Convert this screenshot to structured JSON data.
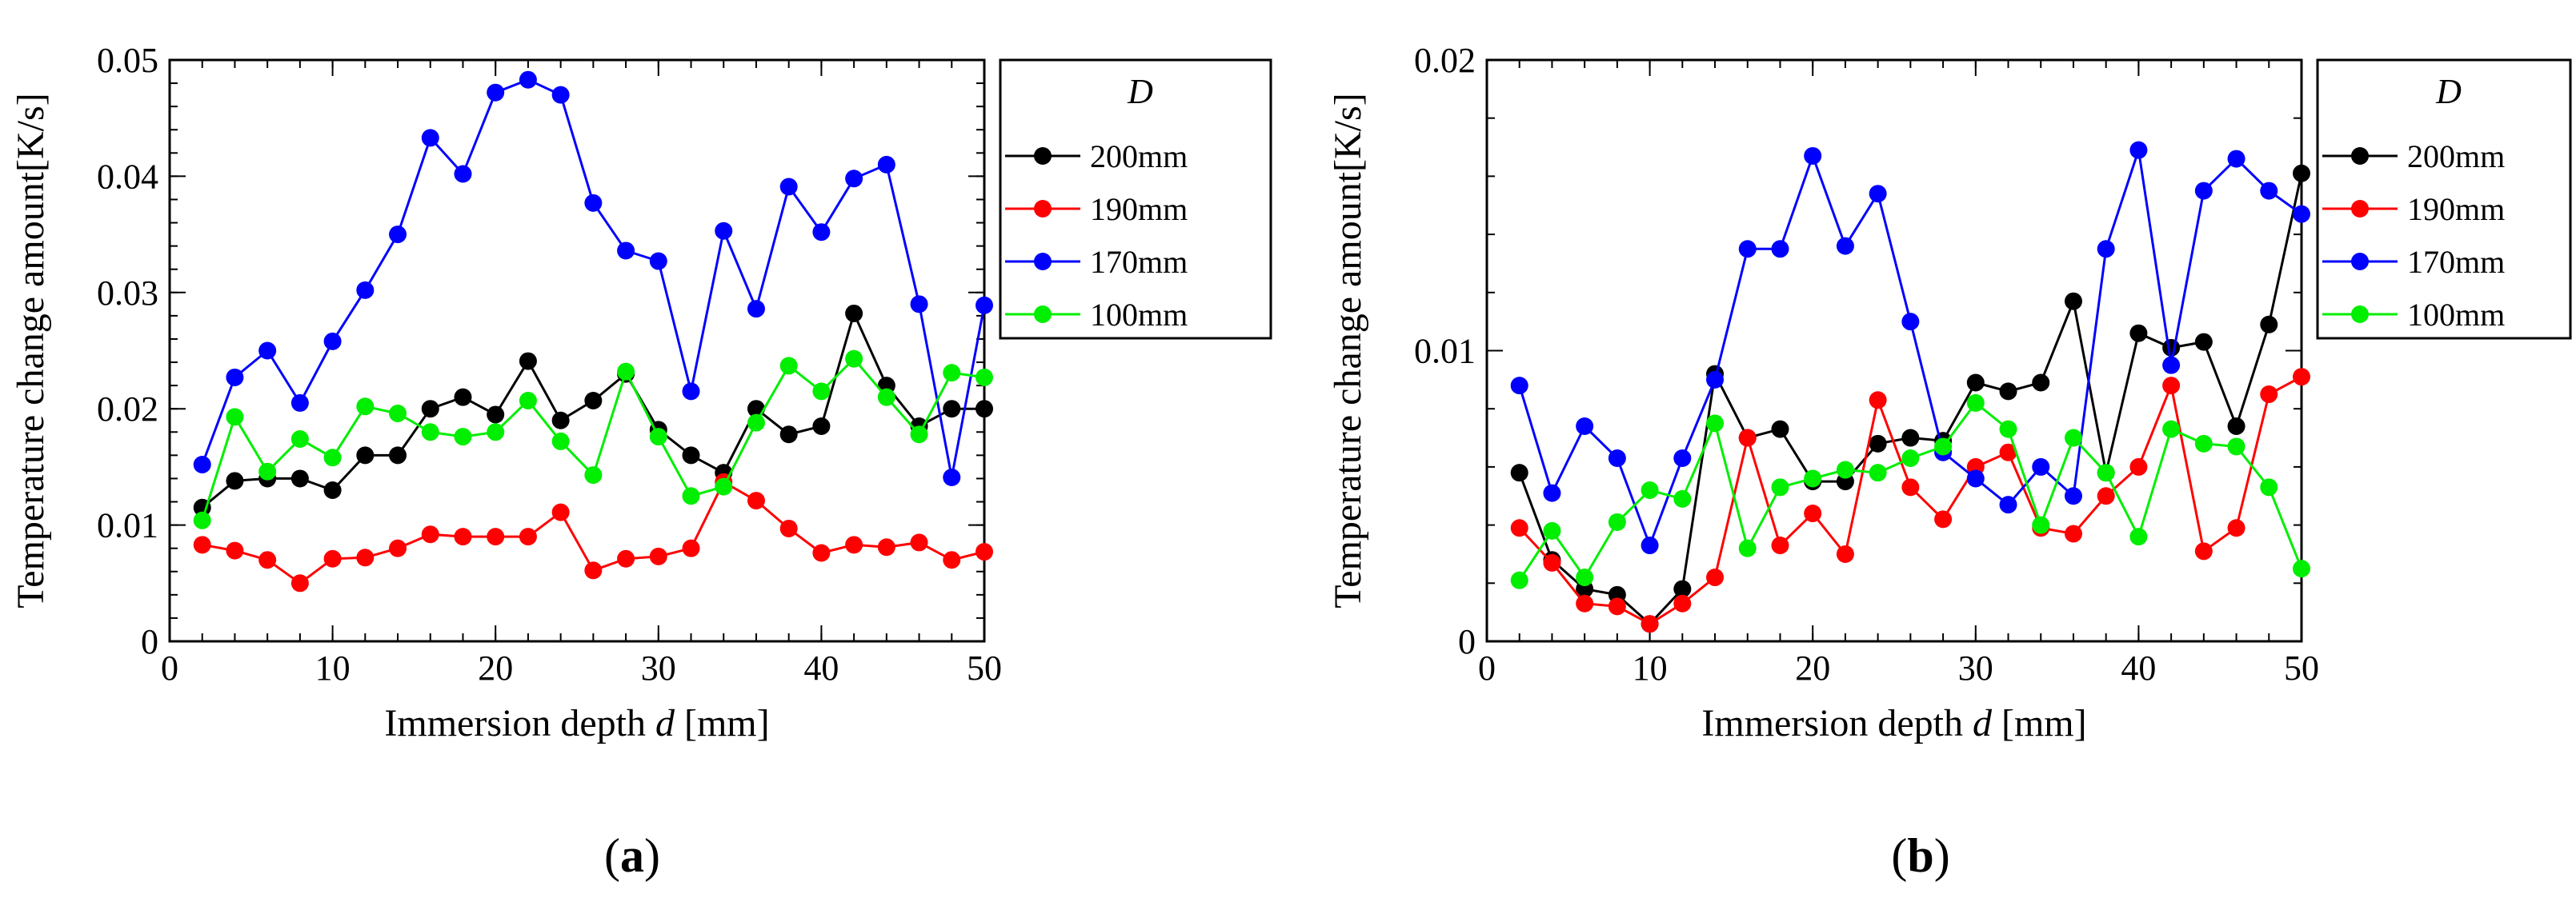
{
  "chart_data": [
    {
      "panel_label": "a",
      "type": "line",
      "xlabel": "Immersion depth",
      "xlabel_var": "d",
      "xlabel_unit": "[mm]",
      "ylabel": "Temperature change amount[K/s]",
      "xlim": [
        0,
        50
      ],
      "ylim": [
        0,
        0.05
      ],
      "xticks": [
        0,
        10,
        20,
        30,
        40,
        50
      ],
      "yticks": [
        0,
        0.01,
        0.02,
        0.03,
        0.04,
        0.05
      ],
      "ytick_labels": [
        "0",
        "0.01",
        "0.02",
        "0.03",
        "0.04",
        "0.05"
      ],
      "legend_title": "D",
      "legend_position": "right-outside",
      "x": [
        2,
        4,
        6,
        8,
        10,
        12,
        14,
        16,
        18,
        20,
        22,
        24,
        26,
        28,
        30,
        32,
        34,
        36,
        38,
        40,
        42,
        44,
        46,
        48,
        50
      ],
      "series": [
        {
          "name": "200mm",
          "color": "#000000",
          "values": [
            0.0115,
            0.0138,
            0.014,
            0.014,
            0.013,
            0.016,
            0.016,
            0.02,
            0.021,
            0.0195,
            0.0241,
            0.019,
            0.0207,
            0.023,
            0.0182,
            0.016,
            0.0145,
            0.02,
            0.0178,
            0.0185,
            0.0282,
            0.022,
            0.0185,
            0.02,
            0.02
          ]
        },
        {
          "name": "190mm",
          "color": "#ff0000",
          "values": [
            0.0083,
            0.0078,
            0.007,
            0.005,
            0.0071,
            0.0072,
            0.008,
            0.0092,
            0.009,
            0.009,
            0.009,
            0.0111,
            0.0061,
            0.0071,
            0.0073,
            0.008,
            0.0137,
            0.0121,
            0.0097,
            0.0076,
            0.0083,
            0.0081,
            0.0085,
            0.007,
            0.0077
          ]
        },
        {
          "name": "170mm",
          "color": "#0000ff",
          "values": [
            0.0152,
            0.0227,
            0.025,
            0.0205,
            0.0258,
            0.0302,
            0.035,
            0.0433,
            0.0402,
            0.0472,
            0.0483,
            0.047,
            0.0377,
            0.0336,
            0.0327,
            0.0215,
            0.0353,
            0.0286,
            0.0391,
            0.0352,
            0.0398,
            0.041,
            0.029,
            0.0141,
            0.0289
          ]
        },
        {
          "name": "100mm",
          "color": "#00ee00",
          "values": [
            0.0104,
            0.0193,
            0.0146,
            0.0174,
            0.0158,
            0.0202,
            0.0196,
            0.018,
            0.0176,
            0.018,
            0.0207,
            0.0172,
            0.0143,
            0.0232,
            0.0176,
            0.0125,
            0.0133,
            0.0188,
            0.0237,
            0.0215,
            0.0243,
            0.021,
            0.0178,
            0.0231,
            0.0227
          ]
        }
      ]
    },
    {
      "panel_label": "b",
      "type": "line",
      "xlabel": "Immersion depth",
      "xlabel_var": "d",
      "xlabel_unit": "[mm]",
      "ylabel": "Temperature change amount[K/s]",
      "xlim": [
        0,
        50
      ],
      "ylim": [
        0,
        0.02
      ],
      "xticks": [
        0,
        10,
        20,
        30,
        40,
        50
      ],
      "yticks": [
        0,
        0.01,
        0.02
      ],
      "ytick_labels": [
        "0",
        "0.01",
        "0.02"
      ],
      "legend_title": "D",
      "legend_position": "right-outside",
      "x": [
        2,
        4,
        6,
        8,
        10,
        12,
        14,
        16,
        18,
        20,
        22,
        24,
        26,
        28,
        30,
        32,
        34,
        36,
        38,
        40,
        42,
        44,
        46,
        48,
        50
      ],
      "series": [
        {
          "name": "200mm",
          "color": "#000000",
          "values": [
            0.0058,
            0.0028,
            0.0018,
            0.0016,
            0.0006,
            0.0018,
            0.0092,
            0.007,
            0.0073,
            0.0055,
            0.0055,
            0.0068,
            0.007,
            0.0069,
            0.0089,
            0.0086,
            0.0089,
            0.0117,
            0.0058,
            0.0106,
            0.0101,
            0.0103,
            0.0074,
            0.0109,
            0.0161
          ]
        },
        {
          "name": "190mm",
          "color": "#ff0000",
          "values": [
            0.0039,
            0.0027,
            0.0013,
            0.0012,
            0.0006,
            0.0013,
            0.0022,
            0.007,
            0.0033,
            0.0044,
            0.003,
            0.0083,
            0.0053,
            0.0042,
            0.006,
            0.0065,
            0.0039,
            0.0037,
            0.005,
            0.006,
            0.0088,
            0.0031,
            0.0039,
            0.0085,
            0.0091
          ]
        },
        {
          "name": "170mm",
          "color": "#0000ff",
          "values": [
            0.0088,
            0.0051,
            0.0074,
            0.0063,
            0.0033,
            0.0063,
            0.009,
            0.0135,
            0.0135,
            0.0167,
            0.0136,
            0.0154,
            0.011,
            0.0065,
            0.0056,
            0.0047,
            0.006,
            0.005,
            0.0135,
            0.0169,
            0.0095,
            0.0155,
            0.0166,
            0.0155,
            0.0147
          ]
        },
        {
          "name": "100mm",
          "color": "#00ee00",
          "values": [
            0.0021,
            0.0038,
            0.0022,
            0.0041,
            0.0052,
            0.0049,
            0.0075,
            0.0032,
            0.0053,
            0.0056,
            0.0059,
            0.0058,
            0.0063,
            0.0067,
            0.0082,
            0.0073,
            0.004,
            0.007,
            0.0058,
            0.0036,
            0.0073,
            0.0068,
            0.0067,
            0.0053,
            0.0025
          ]
        }
      ]
    }
  ]
}
